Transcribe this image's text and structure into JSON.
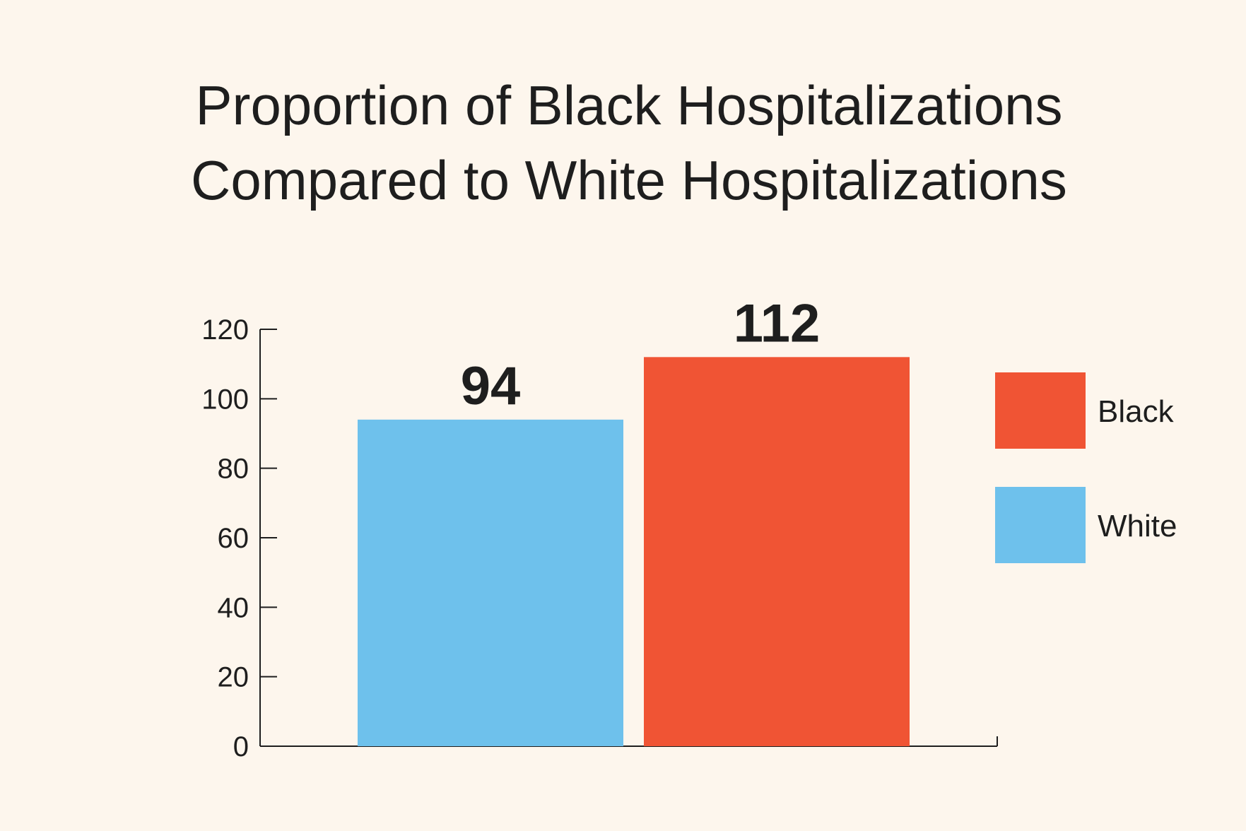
{
  "chart_data": {
    "type": "bar",
    "title_lines": [
      "Proportion of Black Hospitalizations",
      "Compared to White Hospitalizations"
    ],
    "categories": [
      "White",
      "Black"
    ],
    "values": [
      94,
      112
    ],
    "value_labels": [
      "94",
      "112"
    ],
    "colors": [
      "#6ec1ec",
      "#f05434"
    ],
    "xlabel": "",
    "ylabel": "",
    "ylim": [
      0,
      120
    ],
    "yticks": [
      0,
      20,
      40,
      60,
      80,
      100,
      120
    ],
    "ytick_labels": [
      "0",
      "20",
      "40",
      "60",
      "80",
      "100",
      "120"
    ],
    "grid": false,
    "legend": {
      "placement": "right",
      "entries": [
        {
          "label": "Black",
          "color": "#f05434"
        },
        {
          "label": "White",
          "color": "#6ec1ec"
        }
      ]
    }
  }
}
